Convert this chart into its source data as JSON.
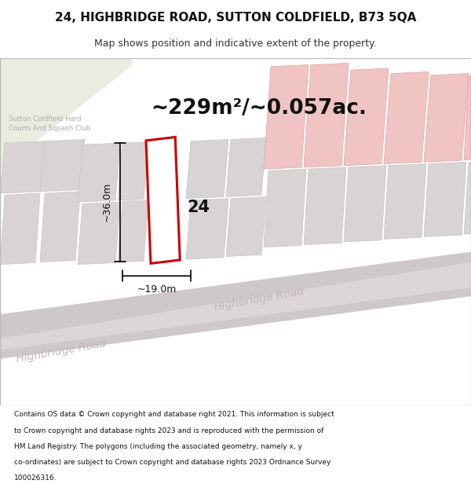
{
  "title_line1": "24, HIGHBRIDGE ROAD, SUTTON COLDFIELD, B73 5QA",
  "title_line2": "Map shows position and indicative extent of the property.",
  "area_text": "~229m²/~0.057ac.",
  "number_label": "24",
  "dim_width": "~19.0m",
  "dim_height": "~36.0m",
  "road_label1": "Highbridge Road",
  "road_label2": "Highbridge Road",
  "place_label": "Sutton Coldfield Hard\nCourts And Squash Club",
  "footer_lines": [
    "Contains OS data © Crown copyright and database right 2021. This information is subject",
    "to Crown copyright and database rights 2023 and is reproduced with the permission of",
    "HM Land Registry. The polygons (including the associated geometry, namely x, y",
    "co-ordinates) are subject to Crown copyright and database rights 2023 Ordnance Survey",
    "100026316."
  ],
  "map_bg": "#f5f0f0",
  "green_area_color": "#e8ede0",
  "gray_col": "#d8d4d4",
  "gray_edge": "#c8c4c4",
  "pink_col": "#f0c4c4",
  "pink_edge": "#e8a0a0",
  "road_col": "#cfc8c8",
  "road_surface": "#ddd6d6",
  "property_fill": "#ffffff",
  "property_edge": "#cc0000"
}
